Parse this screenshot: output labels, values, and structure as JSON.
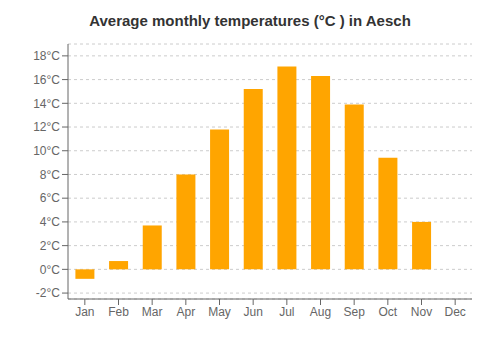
{
  "chart_data": {
    "type": "bar",
    "title": "Average monthly temperatures (°C ) in Aesch",
    "categories": [
      "Jan",
      "Feb",
      "Mar",
      "Apr",
      "May",
      "Jun",
      "Jul",
      "Aug",
      "Sep",
      "Oct",
      "Nov",
      "Dec"
    ],
    "values": [
      -0.8,
      0.7,
      3.7,
      8.0,
      11.8,
      15.2,
      17.1,
      16.3,
      13.9,
      9.4,
      4.0,
      0.0
    ],
    "color": "#FFA500",
    "ylim": [
      -2.5,
      19
    ],
    "yticks": [
      {
        "value": -2,
        "label": "-2°C"
      },
      {
        "value": 0,
        "label": "0°C"
      },
      {
        "value": 2,
        "label": "2°C"
      },
      {
        "value": 4,
        "label": "4°C"
      },
      {
        "value": 6,
        "label": "6°C"
      },
      {
        "value": 8,
        "label": "8°C"
      },
      {
        "value": 10,
        "label": "10°C"
      },
      {
        "value": 12,
        "label": "12°C"
      },
      {
        "value": 14,
        "label": "14°C"
      },
      {
        "value": 16,
        "label": "16°C"
      },
      {
        "value": 18,
        "label": "18°C"
      }
    ],
    "grid": true
  }
}
